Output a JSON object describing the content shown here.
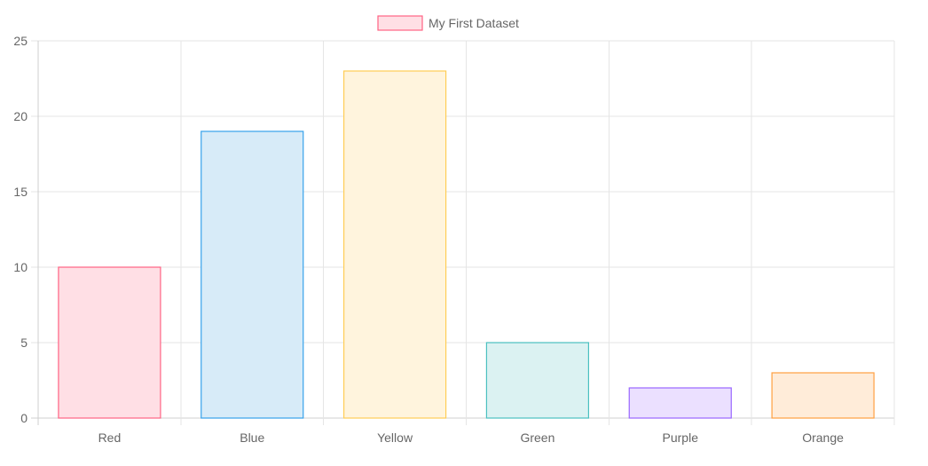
{
  "chart_data": {
    "type": "bar",
    "categories": [
      "Red",
      "Blue",
      "Yellow",
      "Green",
      "Purple",
      "Orange"
    ],
    "series": [
      {
        "name": "My First Dataset",
        "values": [
          10,
          19,
          23,
          5,
          2,
          3
        ]
      }
    ],
    "ylim": [
      0,
      25
    ],
    "yticks": [
      "0",
      "5",
      "10",
      "15",
      "20",
      "25"
    ],
    "grid": true,
    "legend_position": "top-center",
    "legend_swatch": {
      "fill": "#ffdfe5",
      "stroke": "#ff6384"
    },
    "bar_colors": [
      {
        "fill": "#ffdfe5",
        "stroke": "#ff6384"
      },
      {
        "fill": "#d7ebf8",
        "stroke": "#36a2eb"
      },
      {
        "fill": "#fff4dd",
        "stroke": "#ffcd56"
      },
      {
        "fill": "#dbf2f2",
        "stroke": "#4bc0c0"
      },
      {
        "fill": "#ebe0ff",
        "stroke": "#9966ff"
      },
      {
        "fill": "#ffecd9",
        "stroke": "#ff9f40"
      }
    ],
    "grid_color": "#e5e5e5",
    "axis_color": "#cfcfcf"
  }
}
